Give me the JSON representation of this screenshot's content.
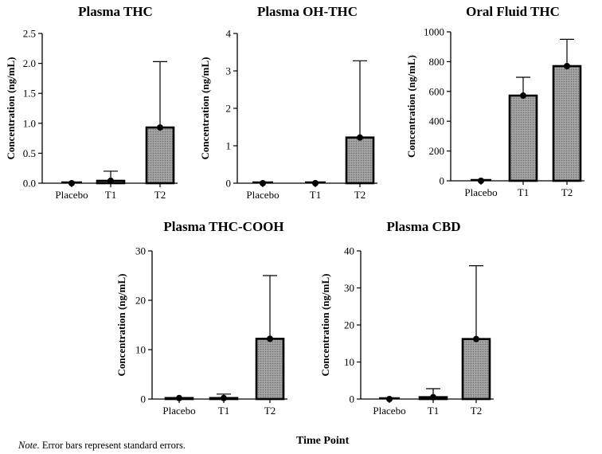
{
  "chart_data": [
    {
      "type": "bar",
      "title": "Plasma THC",
      "ylabel": "Concentration (ng/mL)",
      "categories": [
        "Placebo",
        "T1",
        "T2"
      ],
      "values": [
        0.0,
        0.04,
        0.93
      ],
      "error": [
        0.0,
        0.16,
        1.1
      ],
      "ylim": [
        0,
        2.5
      ],
      "yticks": [
        "0.0",
        "0.5",
        "1.0",
        "1.5",
        "2.0",
        "2.5"
      ],
      "ytick_values": [
        0,
        0.5,
        1.0,
        1.5,
        2.0,
        2.5
      ]
    },
    {
      "type": "bar",
      "title": "Plasma OH-THC",
      "ylabel": "Concentration (ng/mL)",
      "categories": [
        "Placebo",
        "T1",
        "T2"
      ],
      "values": [
        0.0,
        0.0,
        1.22
      ],
      "error": [
        0.0,
        0.0,
        2.05
      ],
      "ylim": [
        0,
        4
      ],
      "yticks": [
        "0",
        "1",
        "2",
        "3",
        "4"
      ],
      "ytick_values": [
        0,
        1,
        2,
        3,
        4
      ]
    },
    {
      "type": "bar",
      "title": "Oral Fluid THC",
      "ylabel": "Concentration (ng/mL)",
      "categories": [
        "Placebo",
        "T1",
        "T2"
      ],
      "values": [
        0,
        572,
        770
      ],
      "error": [
        0,
        123,
        180
      ],
      "ylim": [
        0,
        1000
      ],
      "yticks": [
        "0",
        "200",
        "400",
        "600",
        "800",
        "1000"
      ],
      "ytick_values": [
        0,
        200,
        400,
        600,
        800,
        1000
      ]
    },
    {
      "type": "bar",
      "title": "Plasma THC-COOH",
      "ylabel": "Concentration (ng/mL)",
      "categories": [
        "Placebo",
        "T1",
        "T2"
      ],
      "values": [
        0.2,
        0.2,
        12.2
      ],
      "error": [
        0.0,
        0.8,
        12.8
      ],
      "ylim": [
        0,
        30
      ],
      "yticks": [
        "0",
        "10",
        "20",
        "30"
      ],
      "ytick_values": [
        0,
        10,
        20,
        30
      ]
    },
    {
      "type": "bar",
      "title": "Plasma CBD",
      "ylabel": "Concentration (ng/mL)",
      "categories": [
        "Placebo",
        "T1",
        "T2"
      ],
      "values": [
        0.0,
        0.5,
        16.2
      ],
      "error": [
        0.0,
        2.3,
        19.8
      ],
      "ylim": [
        0,
        40
      ],
      "yticks": [
        "0",
        "10",
        "20",
        "30",
        "40"
      ],
      "ytick_values": [
        0,
        10,
        20,
        30,
        40
      ]
    }
  ],
  "xlabel": "Time Point",
  "note": {
    "label": "Note.",
    "text": "Error bars represent standard errors."
  }
}
